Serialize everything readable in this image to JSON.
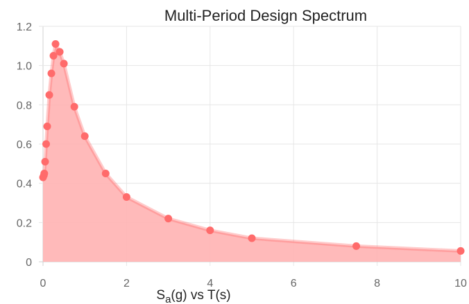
{
  "chart_data": {
    "type": "area",
    "title": "Multi-Period Design Spectrum",
    "xlabel": {
      "parts": [
        "S",
        "a",
        "(g) vs T(s)"
      ]
    },
    "ylabel": "",
    "xlim": [
      0,
      10
    ],
    "ylim": [
      0,
      1.2
    ],
    "xticks": [
      "0",
      "2",
      "4",
      "6",
      "8",
      "10"
    ],
    "yticks": [
      "0",
      "0.2",
      "0.4",
      "0.6",
      "0.8",
      "1.0",
      "1.2"
    ],
    "grid": true,
    "series": [
      {
        "color": "#ff6b6b",
        "fill": "#ffb3b3",
        "points": [
          {
            "x": 0.0,
            "y": 0.43
          },
          {
            "x": 0.02,
            "y": 0.44
          },
          {
            "x": 0.03,
            "y": 0.45
          },
          {
            "x": 0.05,
            "y": 0.51
          },
          {
            "x": 0.075,
            "y": 0.6
          },
          {
            "x": 0.1,
            "y": 0.69
          },
          {
            "x": 0.15,
            "y": 0.85
          },
          {
            "x": 0.2,
            "y": 0.96
          },
          {
            "x": 0.25,
            "y": 1.05
          },
          {
            "x": 0.3,
            "y": 1.11
          },
          {
            "x": 0.4,
            "y": 1.07
          },
          {
            "x": 0.5,
            "y": 1.01
          },
          {
            "x": 0.75,
            "y": 0.79
          },
          {
            "x": 1.0,
            "y": 0.64
          },
          {
            "x": 1.5,
            "y": 0.45
          },
          {
            "x": 2.0,
            "y": 0.33
          },
          {
            "x": 3.0,
            "y": 0.22
          },
          {
            "x": 4.0,
            "y": 0.16
          },
          {
            "x": 5.0,
            "y": 0.12
          },
          {
            "x": 7.5,
            "y": 0.08
          },
          {
            "x": 10.0,
            "y": 0.055
          }
        ]
      }
    ]
  }
}
